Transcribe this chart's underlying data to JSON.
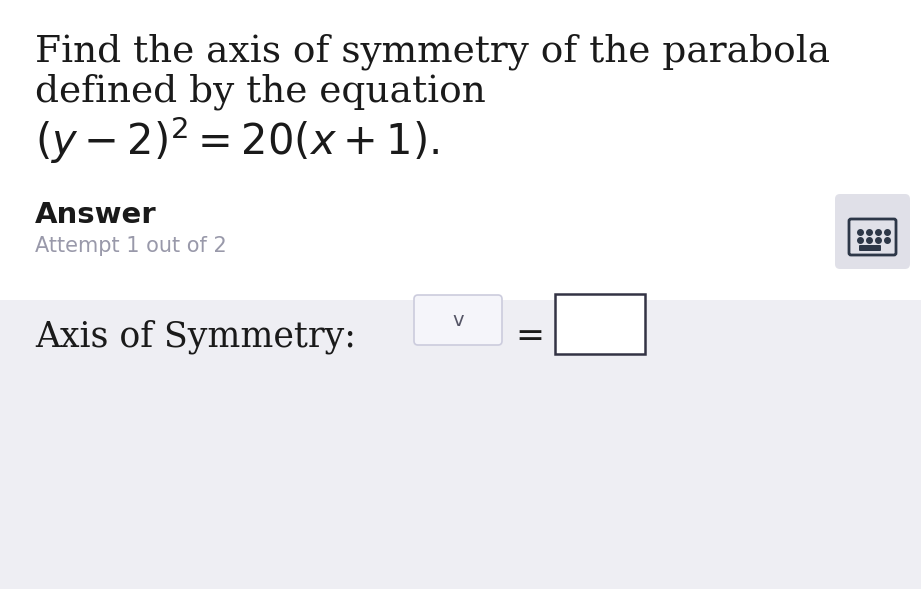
{
  "bg_color_top": "#ffffff",
  "bg_color_bottom": "#eeeef3",
  "title_line1": "Find the axis of symmetry of the parabola",
  "title_line2": "defined by the equation",
  "equation": "$(y - 2)^2 = 20(x + 1).$",
  "answer_label": "Answer",
  "attempt_text": "Attempt 1 out of 2",
  "axis_label": "Axis of Symmetry:",
  "text_color": "#1a1a1a",
  "attempt_color": "#9999aa",
  "icon_bg": "#e0e0e8",
  "icon_border": "#2d3748",
  "dropdown_bg": "#f5f5fa",
  "dropdown_border": "#ccccdd",
  "input_border": "#333344",
  "title_fontsize": 27,
  "equation_fontsize": 30,
  "answer_fontsize": 21,
  "attempt_fontsize": 15,
  "axis_fontsize": 25
}
